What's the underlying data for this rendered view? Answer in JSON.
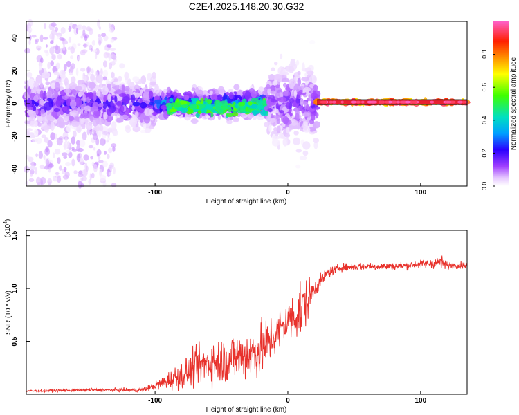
{
  "title": "C2E4.2025.148.20.30.G32",
  "chart_data": [
    {
      "type": "heatmap",
      "xlabel": "Height of straight line (km)",
      "ylabel": "Frequency (Hz)",
      "xlim": [
        -197,
        135
      ],
      "ylim": [
        -50,
        50
      ],
      "xticks": [
        -100,
        0,
        100
      ],
      "xtick_labels": [
        "-100",
        "0",
        "100"
      ],
      "yticks": [
        -40,
        -20,
        0,
        20,
        40
      ],
      "ytick_labels": [
        "-40",
        "-20",
        "0",
        "20",
        "40"
      ],
      "colorbar": {
        "label": "Normalized spectral amplitude",
        "ticks": [
          0.0,
          0.2,
          0.4,
          0.6,
          0.8
        ],
        "tick_labels": [
          "0.0",
          "0.2",
          "0.4",
          "0.6",
          "0.8"
        ],
        "range": [
          0,
          1
        ]
      },
      "clusters": [
        {
          "x": [
            -197,
            -130
          ],
          "freq_center": 0,
          "freq_spread": 50,
          "amplitude": 0.05,
          "density": "scattered"
        },
        {
          "x": [
            -197,
            -100
          ],
          "freq_center": 0,
          "freq_spread": 15,
          "amplitude": 0.15,
          "density": "dense"
        },
        {
          "x": [
            -100,
            -15
          ],
          "freq_center": 0,
          "freq_spread": 8,
          "amplitude": 0.3,
          "density": "dense"
        },
        {
          "x": [
            -90,
            -15
          ],
          "freq_center": -2,
          "freq_spread": 2,
          "amplitude": 0.55,
          "density": "line"
        },
        {
          "x": [
            -15,
            22
          ],
          "freq_center": 0,
          "freq_spread": 25,
          "amplitude": 0.12,
          "density": "dense"
        },
        {
          "x": [
            22,
            135
          ],
          "freq_center": 1,
          "freq_spread": 0.5,
          "amplitude": 0.95,
          "density": "line"
        }
      ],
      "grid": false
    },
    {
      "type": "line",
      "xlabel": "Height of straight line (km)",
      "ylabel": "SNR (10 * v/v)",
      "y_multiplier": "(x10^4)",
      "xlim": [
        -197,
        135
      ],
      "ylim": [
        0,
        15500
      ],
      "xticks": [
        -100,
        0,
        100
      ],
      "xtick_labels": [
        "-100",
        "0",
        "100"
      ],
      "yticks": [
        5000,
        10000,
        15000
      ],
      "ytick_labels": [
        "0.5",
        "1.0",
        "1.5"
      ],
      "color": "#e8322c",
      "series": [
        {
          "x": [
            -197,
            -150,
            -110,
            -100,
            -90,
            -80,
            -70,
            -60,
            -50,
            -40,
            -30,
            -20,
            -10,
            0,
            10,
            20,
            30,
            40,
            60,
            80,
            100,
            110,
            115,
            120,
            125,
            135
          ],
          "y": [
            300,
            400,
            400,
            800,
            1300,
            1800,
            2500,
            3000,
            3200,
            3500,
            3800,
            4200,
            5500,
            7000,
            8000,
            10000,
            11500,
            12000,
            12100,
            12100,
            12300,
            12400,
            12500,
            12200,
            12200,
            12200
          ],
          "noise": [
            100,
            120,
            150,
            300,
            700,
            1100,
            1400,
            1600,
            1800,
            1900,
            2000,
            2200,
            1800,
            1500,
            2500,
            700,
            400,
            300,
            300,
            300,
            300,
            400,
            600,
            300,
            250,
            250
          ]
        }
      ],
      "grid": false
    }
  ]
}
